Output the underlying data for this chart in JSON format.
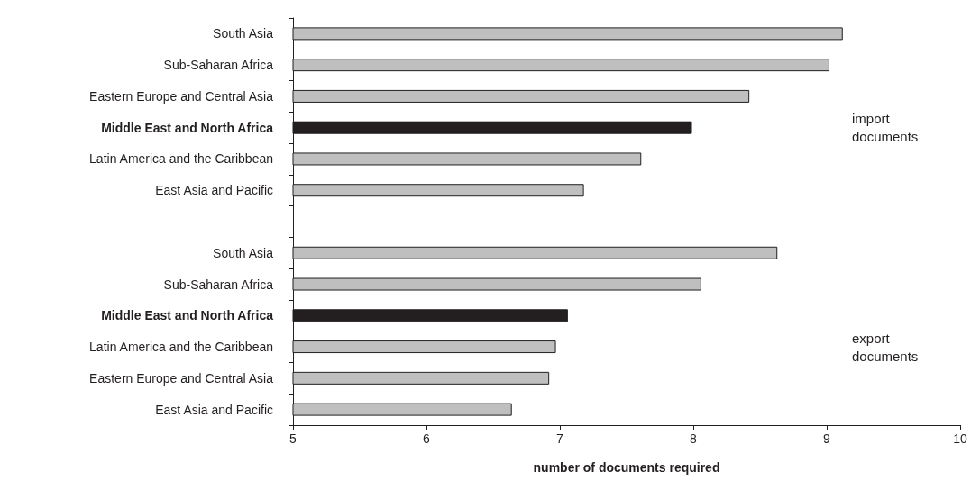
{
  "chart_data": {
    "type": "bar",
    "orientation": "horizontal",
    "xlabel": "number of documents required",
    "categories": [
      "South Asia",
      "Sub-Saharan Africa",
      "Eastern Europe and Central Asia",
      "Middle East and North Africa",
      "Latin America and the Caribbean",
      "East Asia and Pacific",
      null,
      "South Asia",
      "Sub-Saharan Africa",
      "Middle East and North Africa",
      "Latin America and the Caribbean",
      "Eastern Europe and Central Asia",
      "East Asia and Pacific"
    ],
    "values": [
      9.12,
      9.02,
      8.42,
      7.99,
      7.61,
      7.18,
      null,
      8.63,
      8.06,
      7.06,
      6.97,
      6.92,
      6.64
    ],
    "colors": [
      "#bfbfbf",
      "#bfbfbf",
      "#bfbfbf",
      "#231f20",
      "#bfbfbf",
      "#bfbfbf",
      "#bfbfbf",
      "#bfbfbf",
      "#bfbfbf",
      "#231f20",
      "#bfbfbf",
      "#bfbfbf",
      "#bfbfbf"
    ],
    "xlim": [
      5,
      10
    ],
    "xticks": [
      5,
      6,
      7,
      8,
      9,
      10
    ],
    "grid": false,
    "annotations": [
      "import\ndocuments",
      "export\ndocuments"
    ]
  }
}
